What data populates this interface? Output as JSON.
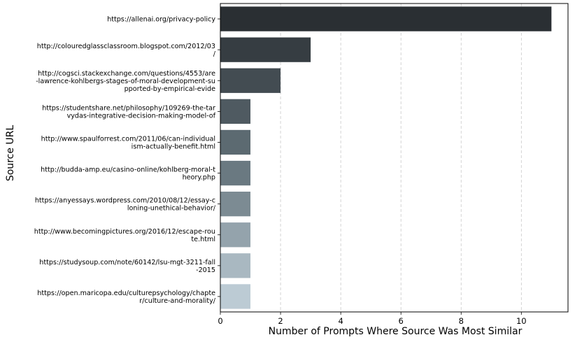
{
  "chart_data": {
    "type": "bar",
    "orientation": "horizontal",
    "title": "",
    "xlabel": "Number of Prompts Where Source Was Most Similar",
    "ylabel": "Source URL",
    "xlim": [
      0,
      11.55
    ],
    "xticks": [
      0,
      2,
      4,
      6,
      8,
      10
    ],
    "grid": "x-axis dashed",
    "categories": [
      [
        "https://allenai.org/privacy-policy"
      ],
      [
        "http://colouredglassclassroom.blogspot.com/2012/03",
        "/"
      ],
      [
        "http://cogsci.stackexchange.com/questions/4553/are",
        "-lawrence-kohlbergs-stages-of-moral-development-su",
        "pported-by-empirical-evide"
      ],
      [
        "https://studentshare.net/philosophy/109269-the-tar",
        "vydas-integrative-decision-making-model-of"
      ],
      [
        "http://www.spaulforrest.com/2011/06/can-individual",
        "ism-actually-benefit.html"
      ],
      [
        "http://budda-amp.eu/casino-online/kohlberg-moral-t",
        "heory.php"
      ],
      [
        "https://anyessays.wordpress.com/2010/08/12/essay-c",
        "loning-unethical-behavior/"
      ],
      [
        "http://www.becomingpictures.org/2016/12/escape-rou",
        "te.html"
      ],
      [
        "https://studysoup.com/note/60142/lsu-mgt-3211-fall",
        "-2015"
      ],
      [
        "https://open.maricopa.edu/culturepsychology/chapte",
        "r/culture-and-morality/"
      ]
    ],
    "values": [
      11,
      3,
      2,
      1,
      1,
      1,
      1,
      1,
      1,
      1
    ],
    "colors": [
      "#2a2f33",
      "#363d42",
      "#434c52",
      "#4f5a61",
      "#5c6a71",
      "#6a7981",
      "#7c8b93",
      "#94a3ac",
      "#a9b8c1",
      "#bccbd4"
    ]
  }
}
